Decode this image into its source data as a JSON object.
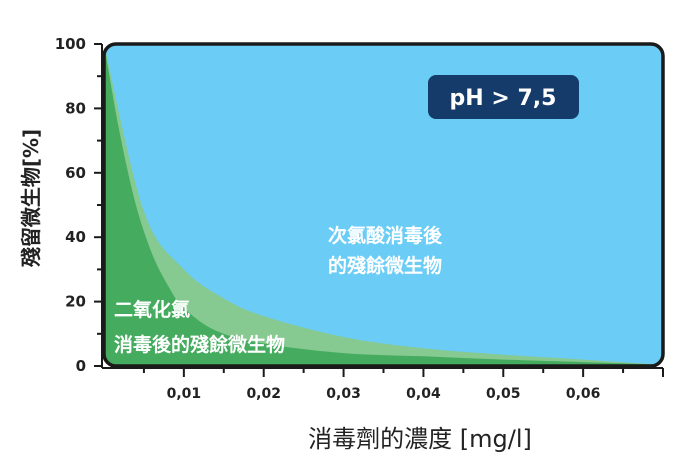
{
  "chart_data": {
    "type": "area",
    "xlabel": "消毒劑的濃度 [mg/l]",
    "ylabel": "殘留微生物[%]",
    "x_ticks": [
      "0,01",
      "0,02",
      "0,03",
      "0,04",
      "0,05",
      "0,06"
    ],
    "x_tick_values": [
      0.01,
      0.02,
      0.03,
      0.04,
      0.05,
      0.06
    ],
    "y_ticks": [
      "0",
      "20",
      "40",
      "60",
      "80",
      "100"
    ],
    "y_tick_values": [
      0,
      20,
      40,
      60,
      80,
      100
    ],
    "xlim": [
      0,
      0.07
    ],
    "ylim": [
      0,
      100
    ],
    "grid": false,
    "series": [
      {
        "name": "二氧化氯消毒後的殘餘微生物",
        "color": "#45ab5f",
        "x": [
          0,
          0.002,
          0.004,
          0.006,
          0.008,
          0.01,
          0.014,
          0.02,
          0.03,
          0.04,
          0.05,
          0.06,
          0.069
        ],
        "values": [
          100,
          72,
          50,
          35,
          25,
          18,
          11,
          7,
          4,
          3,
          2,
          1.2,
          0.5
        ]
      },
      {
        "name": "次氯酸消毒後的殘餘微生物",
        "color": "#86c991",
        "x": [
          0,
          0.005,
          0.01,
          0.015,
          0.02,
          0.03,
          0.04,
          0.05,
          0.06,
          0.069
        ],
        "values": [
          100,
          48,
          30,
          21,
          15.5,
          9,
          5.5,
          3.5,
          2,
          0.5
        ]
      },
      {
        "name": "pH > 7,5",
        "color": "#6bcdf6",
        "x": [
          0,
          0.002,
          0.005,
          0.01,
          0.02,
          0.03,
          0.04,
          0.05,
          0.06,
          0.069
        ],
        "values": [
          100,
          93,
          86,
          79,
          70,
          65,
          61,
          58,
          56,
          55
        ]
      }
    ],
    "annotations": {
      "badge": "pH > 7,5",
      "middle_line1": "次氯酸消毒後",
      "middle_line2": "的殘餘微生物",
      "lower_line1": "二氧化氯",
      "lower_line2": "消毒後的殘餘微生物"
    },
    "colors": {
      "sky": "#6bcdf6",
      "light_green": "#86c991",
      "dark_green": "#45ab5f",
      "badge": "#153b6a",
      "border": "#1a1a1a"
    }
  }
}
